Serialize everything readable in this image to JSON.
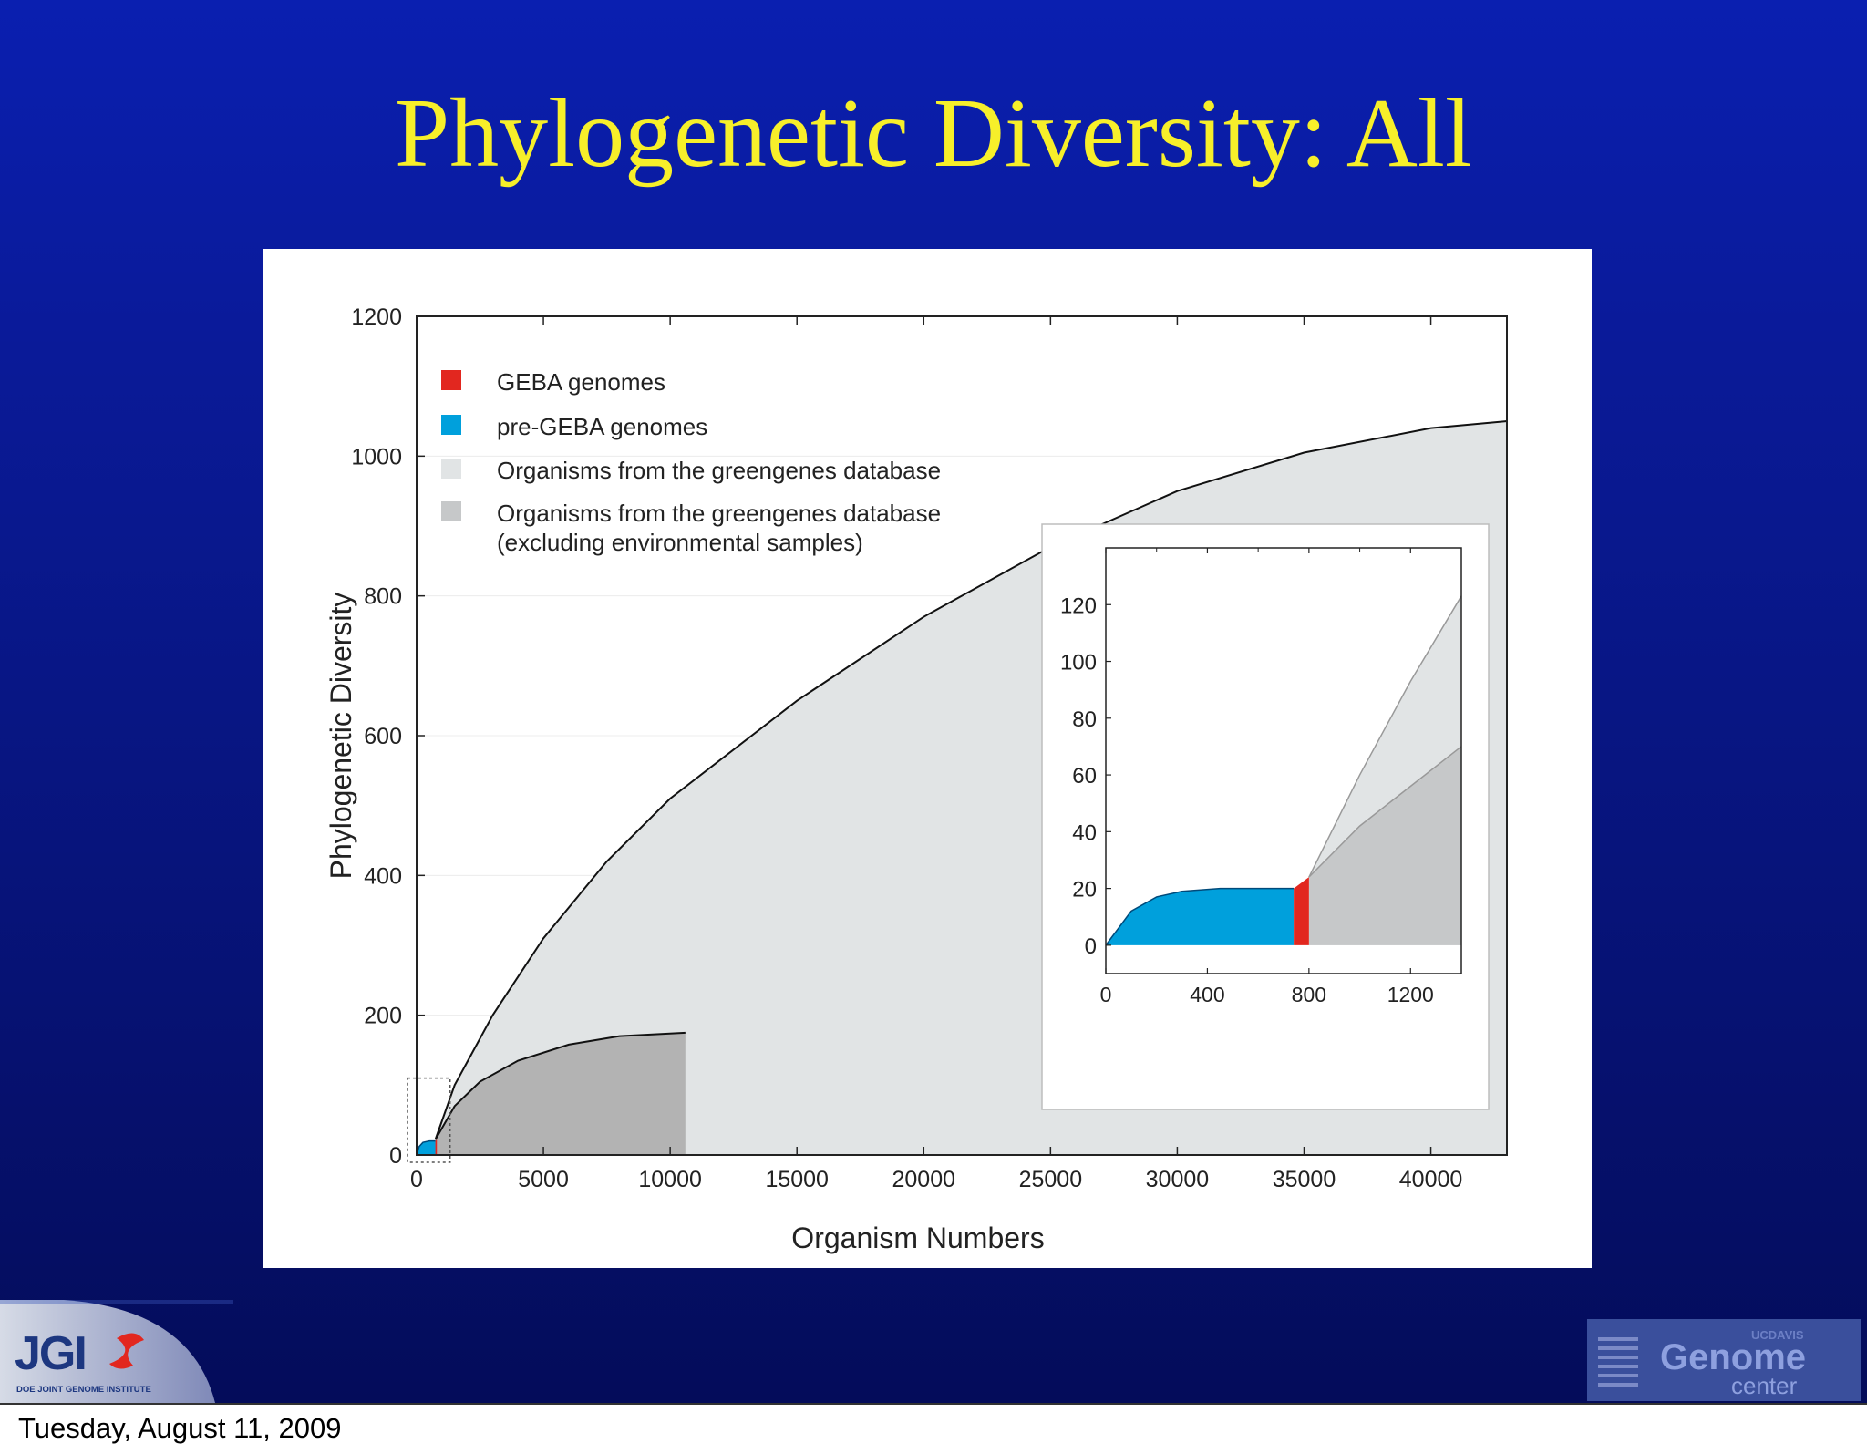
{
  "slide": {
    "title": "Phylogenetic Diversity: All",
    "date": "Tuesday, August 11, 2009"
  },
  "logos": {
    "left": {
      "main": "JGI",
      "subtitle": "DOE JOINT GENOME INSTITUTE",
      "icon": "jgi-swoosh-icon"
    },
    "right": {
      "small": "UCDAVIS",
      "main": "Genome",
      "sub": "center",
      "icon": "genome-stripes-icon"
    }
  },
  "colors": {
    "title": "#f7ef2a",
    "geba": "#e2271f",
    "pre_geba": "#00a0dc",
    "greengenes": "#e1e4e5",
    "greengenes_excl_env": "#c6c8c9",
    "greengenes_excl_env_main": "#b3b3b3"
  },
  "chart_data": [
    {
      "type": "area",
      "xlabel": "Organism Numbers",
      "ylabel": "Phylogenetic Diversity",
      "xlim": [
        0,
        43000
      ],
      "ylim": [
        0,
        1200
      ],
      "xticks": [
        0,
        5000,
        10000,
        15000,
        20000,
        25000,
        30000,
        35000,
        40000
      ],
      "xtick_labels": [
        "0",
        "5000",
        "10000",
        "15000",
        "20000",
        "25000",
        "30000",
        "35000",
        "40000"
      ],
      "yticks": [
        0,
        200,
        400,
        600,
        800,
        1000,
        1200
      ],
      "ytick_labels": [
        "0",
        "200",
        "400",
        "600",
        "800",
        "1000",
        "1200"
      ],
      "legend": {
        "placement": "top-left",
        "entries": [
          {
            "label": "GEBA genomes",
            "color": "#e2271f"
          },
          {
            "label": "pre-GEBA genomes",
            "color": "#00a0dc"
          },
          {
            "label": "Organisms from the greengenes database",
            "color": "#e1e4e5"
          },
          {
            "label": "Organisms from the greengenes database (excluding environmental samples)",
            "label_lines": [
              "Organisms from the greengenes database",
              "(excluding environmental samples)"
            ],
            "color": "#c6c8c9"
          }
        ]
      },
      "series": [
        {
          "name": "Organisms from the greengenes database",
          "x": [
            740,
            1500,
            3000,
            5000,
            7500,
            10000,
            15000,
            20000,
            25000,
            30000,
            35000,
            40000,
            43000
          ],
          "y": [
            22,
            100,
            200,
            310,
            420,
            510,
            650,
            770,
            870,
            950,
            1005,
            1040,
            1050
          ]
        },
        {
          "name": "Organisms from the greengenes database (excluding environmental samples)",
          "x": [
            740,
            1500,
            2500,
            4000,
            6000,
            8000,
            10600
          ],
          "y": [
            22,
            70,
            105,
            135,
            158,
            170,
            175
          ]
        },
        {
          "name": "pre-GEBA genomes",
          "x": [
            0,
            100,
            250,
            500,
            740
          ],
          "y": [
            0,
            12,
            18,
            20,
            20
          ]
        },
        {
          "name": "GEBA genomes",
          "x": [
            740,
            800
          ],
          "y": [
            20,
            22
          ]
        }
      ],
      "zoom_box": {
        "x": [
          0,
          1320
        ],
        "y": [
          0,
          110
        ]
      }
    },
    {
      "type": "area",
      "placement": "inset",
      "xlim": [
        0,
        1400
      ],
      "ylim": [
        -10,
        140
      ],
      "xticks": [
        0,
        400,
        800,
        1200
      ],
      "xtick_labels": [
        "0",
        "400",
        "800",
        "1200"
      ],
      "yticks": [
        0,
        20,
        40,
        60,
        80,
        100,
        120
      ],
      "ytick_labels": [
        "0",
        "20",
        "40",
        "60",
        "80",
        "100",
        "120"
      ],
      "series": [
        {
          "name": "pre-GEBA genomes",
          "x": [
            0,
            100,
            200,
            300,
            450,
            600,
            740
          ],
          "y": [
            0,
            12,
            17,
            19,
            20,
            20,
            20
          ]
        },
        {
          "name": "GEBA genomes",
          "x": [
            740,
            800
          ],
          "y": [
            20,
            24
          ]
        },
        {
          "name": "Organisms from the greengenes database",
          "x": [
            800,
            1000,
            1200,
            1400
          ],
          "y": [
            24,
            60,
            93,
            123
          ]
        },
        {
          "name": "Organisms from the greengenes database (excluding environmental samples)",
          "x": [
            800,
            1000,
            1200,
            1400
          ],
          "y": [
            24,
            42,
            56,
            70
          ]
        }
      ]
    }
  ]
}
